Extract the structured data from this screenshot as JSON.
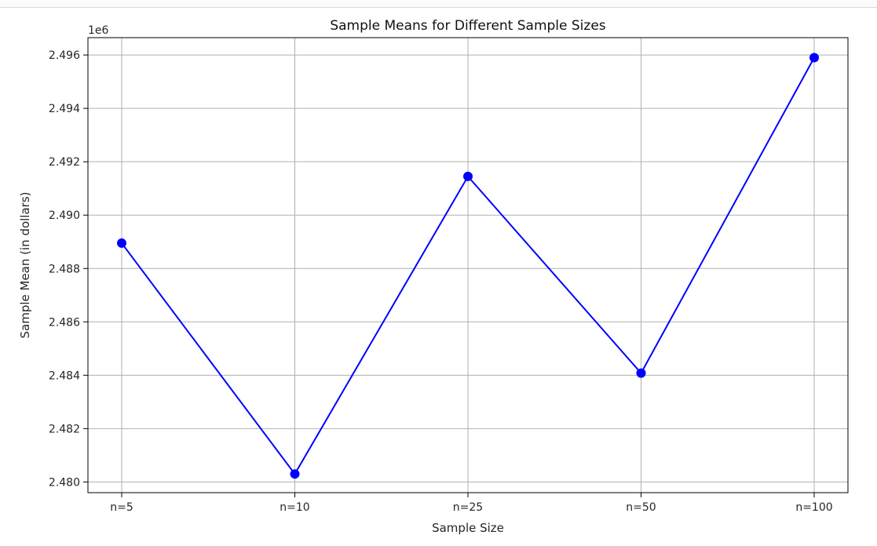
{
  "chart_data": {
    "type": "line",
    "title": "Sample Means for Different Sample Sizes",
    "xlabel": "Sample Size",
    "ylabel": "Sample Mean (in dollars)",
    "offset_label": "1e6",
    "categories": [
      "n=5",
      "n=10",
      "n=25",
      "n=50",
      "n=100"
    ],
    "series": [
      {
        "values": [
          2488950,
          2480300,
          2491450,
          2484080,
          2495900
        ],
        "color": "#0000ff"
      }
    ],
    "ylim": [
      2479600,
      2496650
    ],
    "yticks": [
      2.48,
      2.482,
      2.484,
      2.486,
      2.488,
      2.49,
      2.492,
      2.494,
      2.496
    ],
    "ytick_labels": [
      "2.480",
      "2.482",
      "2.484",
      "2.486",
      "2.488",
      "2.490",
      "2.492",
      "2.494",
      "2.496"
    ],
    "grid": true,
    "marker": "circle"
  }
}
